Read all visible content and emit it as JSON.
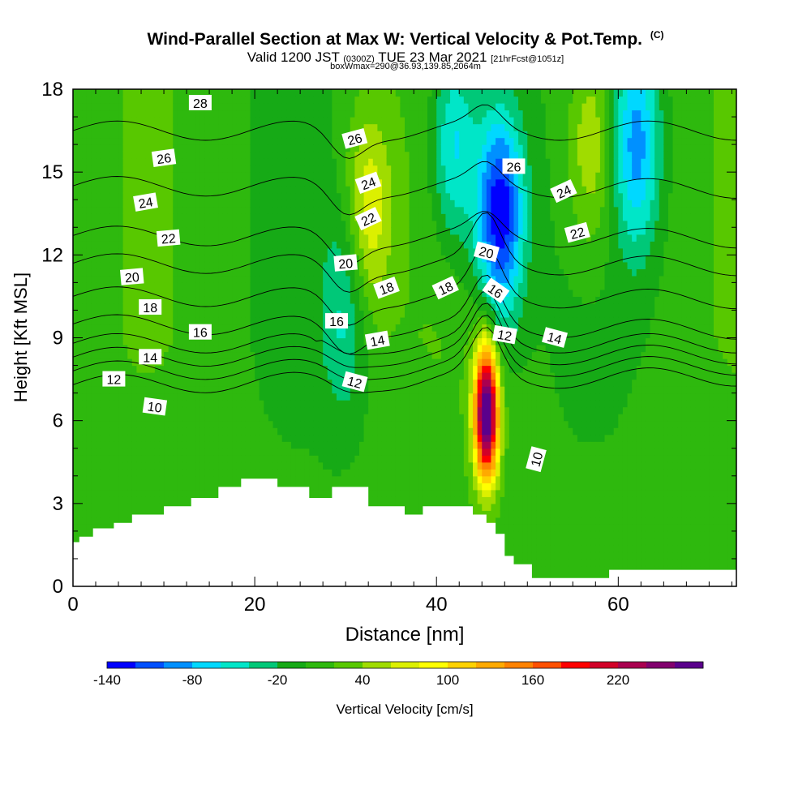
{
  "header": {
    "title": "Wind-Parallel Section at Max W: Vertical Velocity & Pot.Temp.",
    "copyright": "(C)",
    "valid_prefix": "Valid 1200 JST",
    "valid_zulu": "(0300Z)",
    "valid_date": "TUE 23 Mar 2021",
    "forecast": "[21hrFcst@1051z]",
    "box_info": "boxWmax=290@36.93,139.85,2064m"
  },
  "chart_data": {
    "type": "heatmap",
    "xlabel": "Distance [nm]",
    "ylabel": "Height [Kft MSL]",
    "xlim": [
      0,
      73
    ],
    "ylim": [
      0,
      18
    ],
    "xticks": [
      0,
      20,
      40,
      60
    ],
    "yticks": [
      0,
      3,
      6,
      9,
      12,
      15,
      18
    ],
    "colorbar": {
      "label": "Vertical Velocity [cm/s]",
      "tick_labels": [
        -140,
        -80,
        -20,
        40,
        100,
        160,
        220
      ],
      "levels": [
        -140,
        -120,
        -100,
        -80,
        -60,
        -40,
        -20,
        0,
        20,
        40,
        60,
        80,
        100,
        120,
        140,
        160,
        180,
        200,
        220,
        240,
        260
      ],
      "colors": [
        "#0000ff",
        "#0050ff",
        "#0090ff",
        "#00d8ff",
        "#00e6c8",
        "#00c878",
        "#16aa16",
        "#2eb90e",
        "#58c800",
        "#a0dc00",
        "#dcf000",
        "#ffff00",
        "#ffd200",
        "#ffaa00",
        "#ff8200",
        "#ff5000",
        "#ff0000",
        "#d20028",
        "#aa0050",
        "#82006e",
        "#5a008c"
      ]
    },
    "terrain": [
      [
        0,
        1.6
      ],
      [
        0.7,
        1.6
      ],
      [
        0.7,
        1.8
      ],
      [
        2.2,
        1.8
      ],
      [
        2.2,
        2.1
      ],
      [
        4.5,
        2.1
      ],
      [
        4.5,
        2.3
      ],
      [
        6.5,
        2.3
      ],
      [
        6.5,
        2.6
      ],
      [
        10,
        2.6
      ],
      [
        10,
        2.9
      ],
      [
        13,
        2.9
      ],
      [
        13,
        3.2
      ],
      [
        16,
        3.2
      ],
      [
        16,
        3.6
      ],
      [
        18.5,
        3.6
      ],
      [
        18.5,
        3.9
      ],
      [
        22.5,
        3.9
      ],
      [
        22.5,
        3.6
      ],
      [
        26,
        3.6
      ],
      [
        26,
        3.2
      ],
      [
        28.5,
        3.2
      ],
      [
        28.5,
        3.6
      ],
      [
        32.5,
        3.6
      ],
      [
        32.5,
        2.9
      ],
      [
        36.5,
        2.9
      ],
      [
        36.5,
        2.6
      ],
      [
        38.5,
        2.6
      ],
      [
        38.5,
        2.9
      ],
      [
        44,
        2.9
      ],
      [
        44,
        2.6
      ],
      [
        45.5,
        2.6
      ],
      [
        45.5,
        2.3
      ],
      [
        46.5,
        2.3
      ],
      [
        46.5,
        1.9
      ],
      [
        47.5,
        1.9
      ],
      [
        47.5,
        1.1
      ],
      [
        48.5,
        1.1
      ],
      [
        48.5,
        0.8
      ],
      [
        50.5,
        0.8
      ],
      [
        50.5,
        0.3
      ],
      [
        59,
        0.3
      ],
      [
        59,
        0.6
      ],
      [
        73,
        0.6
      ]
    ],
    "velocity_features": [
      {
        "type": "updraft",
        "x": 45.5,
        "z": 6.3,
        "peak": 290
      },
      {
        "type": "downdraft",
        "x": 47,
        "z": 13.5,
        "peak": -150
      },
      {
        "type": "updraft",
        "x": 32.5,
        "z": 13.5,
        "peak": 70
      },
      {
        "type": "updraft",
        "x": 57,
        "z": 16,
        "peak": 60
      },
      {
        "type": "downdraft",
        "x": 42,
        "z": 16,
        "peak": -80
      },
      {
        "type": "downdraft",
        "x": 30,
        "z": 10,
        "peak": -50
      },
      {
        "type": "downdraft",
        "x": 62,
        "z": 16,
        "peak": -90
      }
    ],
    "isentropes": [
      {
        "value": 10,
        "z_left": 7.3,
        "z_right": 7.6
      },
      {
        "value": 12,
        "z_left": 7.8,
        "z_right": 8.0
      },
      {
        "value": 14,
        "z_left": 8.3,
        "z_right": 8.4
      },
      {
        "value": 16,
        "z_left": 8.8,
        "z_right": 8.8
      },
      {
        "value": 18,
        "z_left": 9.5,
        "z_right": 9.3
      },
      {
        "value": 20,
        "z_left": 10.5,
        "z_right": 10.4
      },
      {
        "value": 22,
        "z_left": 11.7,
        "z_right": 11.6
      },
      {
        "value": 24,
        "z_left": 12.7,
        "z_right": 12.6
      },
      {
        "value": 26,
        "z_left": 14.5,
        "z_right": 14.4
      },
      {
        "value": 28,
        "z_left": 16.5,
        "z_right": 16.5
      }
    ],
    "contour_labels": [
      {
        "text": "28",
        "x": 14,
        "z": 17.5,
        "angle": 0
      },
      {
        "text": "26",
        "x": 10,
        "z": 15.5,
        "angle": -8
      },
      {
        "text": "24",
        "x": 8,
        "z": 13.9,
        "angle": -10
      },
      {
        "text": "22",
        "x": 10.5,
        "z": 12.6,
        "angle": -5
      },
      {
        "text": "20",
        "x": 6.5,
        "z": 11.2,
        "angle": -5
      },
      {
        "text": "18",
        "x": 8.5,
        "z": 10.1,
        "angle": 0
      },
      {
        "text": "16",
        "x": 14,
        "z": 9.2,
        "angle": 0
      },
      {
        "text": "14",
        "x": 8.5,
        "z": 8.3,
        "angle": 0
      },
      {
        "text": "12",
        "x": 4.5,
        "z": 7.5,
        "angle": 0
      },
      {
        "text": "10",
        "x": 9,
        "z": 6.5,
        "angle": 8
      },
      {
        "text": "26",
        "x": 31,
        "z": 16.2,
        "angle": -15
      },
      {
        "text": "24",
        "x": 32.5,
        "z": 14.6,
        "angle": -20
      },
      {
        "text": "22",
        "x": 32.5,
        "z": 13.3,
        "angle": -25
      },
      {
        "text": "20",
        "x": 30,
        "z": 11.7,
        "angle": -5
      },
      {
        "text": "18",
        "x": 34.5,
        "z": 10.8,
        "angle": -20
      },
      {
        "text": "16",
        "x": 29,
        "z": 9.6,
        "angle": 0
      },
      {
        "text": "14",
        "x": 33.5,
        "z": 8.9,
        "angle": -10
      },
      {
        "text": "12",
        "x": 31,
        "z": 7.4,
        "angle": 15
      },
      {
        "text": "18",
        "x": 41,
        "z": 10.8,
        "angle": -25
      },
      {
        "text": "20",
        "x": 45.5,
        "z": 12.1,
        "angle": 15
      },
      {
        "text": "26",
        "x": 48.5,
        "z": 15.2,
        "angle": 0
      },
      {
        "text": "16",
        "x": 46.5,
        "z": 10.7,
        "angle": 35
      },
      {
        "text": "12",
        "x": 47.5,
        "z": 9.1,
        "angle": 10
      },
      {
        "text": "14",
        "x": 53,
        "z": 9.0,
        "angle": 15
      },
      {
        "text": "24",
        "x": 54,
        "z": 14.3,
        "angle": -25
      },
      {
        "text": "22",
        "x": 55.5,
        "z": 12.8,
        "angle": -15
      },
      {
        "text": "10",
        "x": 51,
        "z": 4.6,
        "angle": -75
      }
    ],
    "grid": false,
    "legend": "bottom"
  }
}
